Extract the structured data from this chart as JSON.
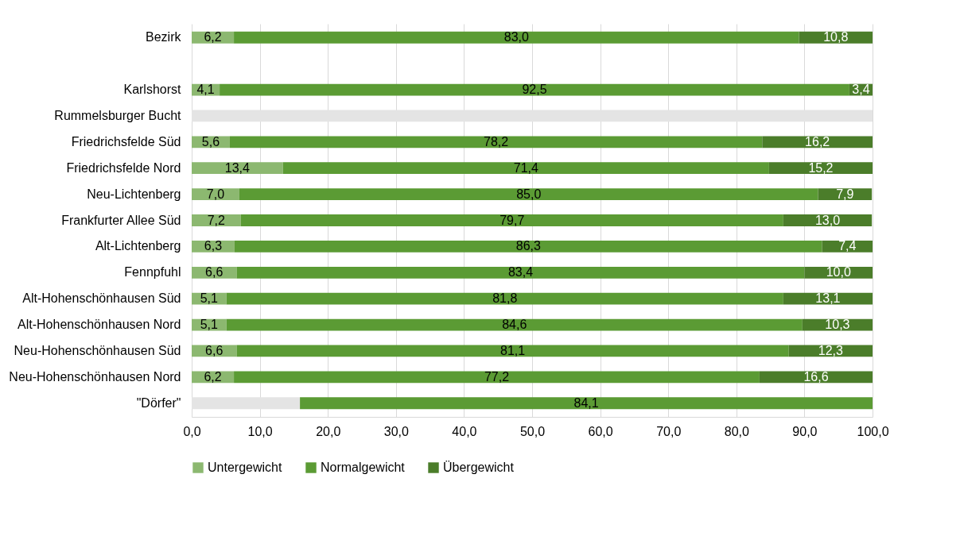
{
  "chart_data": {
    "type": "bar",
    "orientation": "horizontal",
    "stacked": true,
    "categories": [
      "Bezirk",
      null,
      "Karlshorst",
      "Rummelsburger Bucht",
      "Friedrichsfelde Süd",
      "Friedrichsfelde Nord",
      "Neu-Lichtenberg",
      "Frankfurter Allee Süd",
      "Alt-Lichtenberg",
      "Fennpfuhl",
      "Alt-Hohenschönhausen Süd",
      "Alt-Hohenschönhausen Nord",
      "Neu-Hohenschönhausen Süd",
      "Neu-Hohenschönhausen Nord",
      "\"Dörfer\""
    ],
    "series": [
      {
        "name": "Untergewicht",
        "color": "#8cb870",
        "values": [
          6.2,
          null,
          4.1,
          null,
          5.6,
          13.4,
          7.0,
          7.2,
          6.3,
          6.6,
          5.1,
          5.1,
          6.6,
          6.2,
          null
        ],
        "value_labels": [
          "6,2",
          null,
          "4,1",
          null,
          "5,6",
          "13,4",
          "7,0",
          "7,2",
          "6,3",
          "6,6",
          "5,1",
          "5,1",
          "6,6",
          "6,2",
          null
        ]
      },
      {
        "color": "#e4e4e4",
        "values": [
          null,
          null,
          null,
          100,
          null,
          null,
          null,
          null,
          null,
          null,
          null,
          null,
          null,
          null,
          15.9
        ]
      },
      {
        "name": "Normalgewicht",
        "color": "#5b9b34",
        "values": [
          83.0,
          null,
          92.5,
          null,
          78.2,
          71.4,
          85.0,
          79.7,
          86.3,
          83.4,
          81.8,
          84.6,
          81.1,
          77.2,
          84.1
        ],
        "value_labels": [
          "83,0",
          null,
          "92,5",
          null,
          "78,2",
          "71,4",
          "85,0",
          "79,7",
          "86,3",
          "83,4",
          "81,8",
          "84,6",
          "81,1",
          "77,2",
          "84,1"
        ]
      },
      {
        "name": "Übergewicht",
        "color": "#4b7d2a",
        "values": [
          10.8,
          null,
          3.4,
          null,
          16.2,
          15.2,
          7.9,
          13.0,
          7.4,
          10.0,
          13.1,
          10.3,
          12.3,
          16.6,
          null
        ],
        "value_labels": [
          "10,8",
          null,
          "3,4",
          null,
          "16,2",
          "15,2",
          "7,9",
          "13,0",
          "7,4",
          "10,0",
          "13,1",
          "10,3",
          "12,3",
          "16,6",
          null
        ]
      }
    ],
    "xlim": [
      0,
      100
    ],
    "xticks": [
      {
        "value": 0,
        "label": "0,0"
      },
      {
        "value": 10,
        "label": "10,0"
      },
      {
        "value": 20,
        "label": "20,0"
      },
      {
        "value": 30,
        "label": "30,0"
      },
      {
        "value": 40,
        "label": "40,0"
      },
      {
        "value": 50,
        "label": "50,0"
      },
      {
        "value": 60,
        "label": "60,0"
      },
      {
        "value": 70,
        "label": "70,0"
      },
      {
        "value": 80,
        "label": "80,0"
      },
      {
        "value": 90,
        "label": "90,0"
      },
      {
        "value": 100,
        "label": "100,0"
      }
    ],
    "grid": "x",
    "legend": "bottom"
  }
}
